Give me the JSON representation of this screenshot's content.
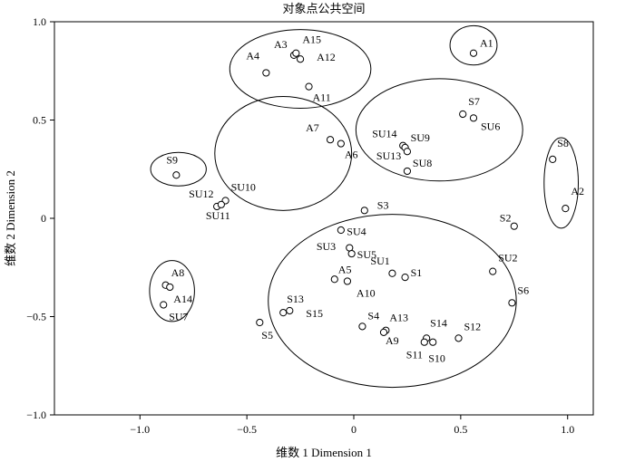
{
  "chart_data": {
    "type": "scatter",
    "title": "对象点公共空间",
    "xlabel": "维数 1 Dimension 1",
    "ylabel": "维数 2 Dimension 2",
    "xlim": [
      -1.4,
      1.12
    ],
    "ylim": [
      -1.0,
      1.0
    ],
    "xticks": [
      -1.0,
      -0.5,
      0,
      0.5,
      1.0
    ],
    "yticks": [
      1.0,
      0.5,
      0,
      -0.5,
      -1.0
    ],
    "xtick_labels": [
      "−1.0",
      "−0.5",
      "0",
      "0.5",
      "1.0"
    ],
    "ytick_labels": [
      "1.0",
      "0.5",
      "0",
      "−0.5",
      "−1.0"
    ],
    "grid": false,
    "legend": "none",
    "points": [
      {
        "label": "A1",
        "x": 0.56,
        "y": 0.84
      },
      {
        "label": "A3",
        "x": -0.28,
        "y": 0.83
      },
      {
        "label": "A15",
        "x": -0.27,
        "y": 0.84
      },
      {
        "label": "A4",
        "x": -0.41,
        "y": 0.74
      },
      {
        "label": "A12",
        "x": -0.25,
        "y": 0.81
      },
      {
        "label": "A11",
        "x": -0.21,
        "y": 0.67
      },
      {
        "label": "S7",
        "x": 0.51,
        "y": 0.53
      },
      {
        "label": "SU6",
        "x": 0.56,
        "y": 0.51
      },
      {
        "label": "SU14",
        "x": 0.23,
        "y": 0.37
      },
      {
        "label": "SU9",
        "x": 0.24,
        "y": 0.36
      },
      {
        "label": "SU13",
        "x": 0.25,
        "y": 0.34
      },
      {
        "label": "SU8",
        "x": 0.25,
        "y": 0.24
      },
      {
        "label": "A7",
        "x": -0.11,
        "y": 0.4
      },
      {
        "label": "A6",
        "x": -0.06,
        "y": 0.38
      },
      {
        "label": "S9",
        "x": -0.83,
        "y": 0.22
      },
      {
        "label": "SU12",
        "x": -0.64,
        "y": 0.06
      },
      {
        "label": "SU10",
        "x": -0.6,
        "y": 0.09
      },
      {
        "label": "SU11",
        "x": -0.62,
        "y": 0.07
      },
      {
        "label": "S8",
        "x": 0.93,
        "y": 0.3
      },
      {
        "label": "A2",
        "x": 0.99,
        "y": 0.05
      },
      {
        "label": "S3",
        "x": 0.05,
        "y": 0.04
      },
      {
        "label": "S2",
        "x": 0.75,
        "y": -0.04
      },
      {
        "label": "SU3",
        "x": -0.06,
        "y": -0.06
      },
      {
        "label": "SU4",
        "x": -0.02,
        "y": -0.15
      },
      {
        "label": "SU5",
        "x": -0.01,
        "y": -0.18
      },
      {
        "label": "SU1",
        "x": 0.18,
        "y": -0.28
      },
      {
        "label": "S1",
        "x": 0.24,
        "y": -0.3
      },
      {
        "label": "SU2",
        "x": 0.65,
        "y": -0.27
      },
      {
        "label": "A5",
        "x": -0.09,
        "y": -0.31
      },
      {
        "label": "A10",
        "x": -0.03,
        "y": -0.32
      },
      {
        "label": "S6",
        "x": 0.74,
        "y": -0.43
      },
      {
        "label": "S13",
        "x": -0.33,
        "y": -0.48
      },
      {
        "label": "S5",
        "x": -0.44,
        "y": -0.53
      },
      {
        "label": "S15",
        "x": -0.3,
        "y": -0.47
      },
      {
        "label": "S4",
        "x": 0.04,
        "y": -0.55
      },
      {
        "label": "A13",
        "x": 0.15,
        "y": -0.57
      },
      {
        "label": "A9",
        "x": 0.14,
        "y": -0.58
      },
      {
        "label": "S14",
        "x": 0.34,
        "y": -0.61
      },
      {
        "label": "S11",
        "x": 0.33,
        "y": -0.63
      },
      {
        "label": "S10",
        "x": 0.37,
        "y": -0.63
      },
      {
        "label": "S12",
        "x": 0.49,
        "y": -0.61
      },
      {
        "label": "A8",
        "x": -0.88,
        "y": -0.34
      },
      {
        "label": "A14",
        "x": -0.86,
        "y": -0.35
      },
      {
        "label": "SU7",
        "x": -0.89,
        "y": -0.44
      }
    ],
    "clusters": [
      {
        "cx": 0.56,
        "cy": 0.88,
        "rx": 0.11,
        "ry": 0.1
      },
      {
        "cx": -0.25,
        "cy": 0.76,
        "rx": 0.33,
        "ry": 0.2
      },
      {
        "cx": 0.4,
        "cy": 0.45,
        "rx": 0.39,
        "ry": 0.26
      },
      {
        "cx": -0.33,
        "cy": 0.33,
        "rx": 0.32,
        "ry": 0.29
      },
      {
        "cx": -0.82,
        "cy": 0.25,
        "rx": 0.13,
        "ry": 0.085
      },
      {
        "cx": 0.97,
        "cy": 0.18,
        "rx": 0.08,
        "ry": 0.23
      },
      {
        "cx": 0.18,
        "cy": -0.42,
        "rx": 0.58,
        "ry": 0.44
      },
      {
        "cx": -0.85,
        "cy": -0.37,
        "rx": 0.105,
        "ry": 0.155
      }
    ]
  }
}
